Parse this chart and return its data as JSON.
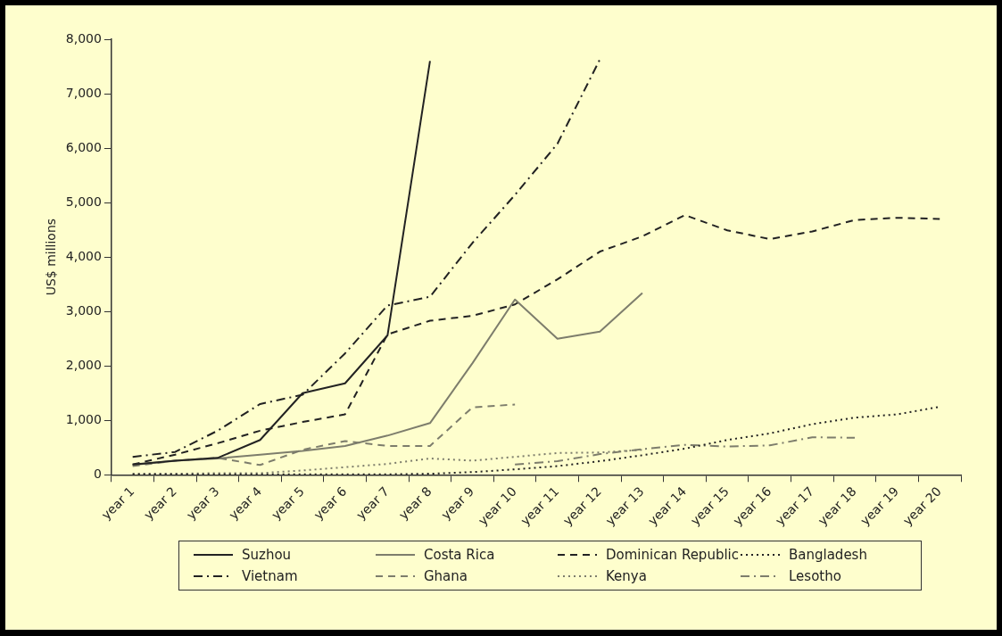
{
  "chart_data": {
    "type": "line",
    "ylabel": "US$ millions",
    "legend": "bottom",
    "grid": false,
    "categories": [
      "year 1",
      "year 2",
      "year 3",
      "year 4",
      "year 5",
      "year 6",
      "year 7",
      "year 8",
      "year 9",
      "year 10",
      "year 11",
      "year 12",
      "year 13",
      "year 14",
      "year 15",
      "year 16",
      "year 17",
      "year 18",
      "year 19",
      "year 20"
    ],
    "ylim": [
      0,
      8000
    ],
    "yticks": [
      0,
      {
        "value": 1000,
        "label": "1,000"
      },
      {
        "value": 2000,
        "label": "2,000"
      },
      {
        "value": 3000,
        "label": "3,000"
      },
      {
        "value": 4000,
        "label": "4,000"
      },
      {
        "value": 5000,
        "label": "5,000"
      },
      {
        "value": 6000,
        "label": "6,000"
      },
      {
        "value": 7000,
        "label": "7,000"
      },
      {
        "value": 8000,
        "label": "8,000"
      }
    ],
    "series": [
      {
        "name": "Suzhou",
        "color": "#222222",
        "line_style": "solid",
        "values": [
          190,
          260,
          310,
          640,
          1500,
          1680,
          2560,
          7600,
          null,
          null,
          null,
          null,
          null,
          null,
          null,
          null,
          null,
          null,
          null,
          null
        ]
      },
      {
        "name": "Costa Rica",
        "color": "#7d7d6c",
        "line_style": "solid",
        "values": [
          180,
          260,
          300,
          370,
          440,
          530,
          720,
          950,
          2050,
          3220,
          2500,
          2630,
          3340,
          null,
          null,
          null,
          null,
          null,
          null,
          null
        ]
      },
      {
        "name": "Dominican Republic",
        "color": "#222222",
        "line_style": "dashed",
        "values": [
          190,
          370,
          580,
          810,
          970,
          1110,
          2580,
          2830,
          2920,
          3130,
          3590,
          4100,
          4380,
          4770,
          4490,
          4330,
          4470,
          4680,
          4720,
          4700
        ]
      },
      {
        "name": "Bangladesh",
        "color": "#222222",
        "line_style": "dotted",
        "values": [
          10,
          10,
          10,
          10,
          10,
          10,
          10,
          20,
          50,
          100,
          160,
          250,
          360,
          480,
          640,
          760,
          930,
          1050,
          1110,
          1250
        ]
      },
      {
        "name": "Vietnam",
        "color": "#222222",
        "line_style": "dashdot",
        "values": [
          330,
          420,
          810,
          1300,
          1470,
          2230,
          3110,
          3270,
          4260,
          5140,
          6080,
          7630,
          null,
          null,
          null,
          null,
          null,
          null,
          null,
          null
        ]
      },
      {
        "name": "Ghana",
        "color": "#7d7d6c",
        "line_style": "dashed",
        "values": [
          160,
          260,
          310,
          180,
          460,
          620,
          530,
          530,
          1240,
          1290,
          null,
          null,
          null,
          null,
          null,
          null,
          null,
          null,
          null,
          null
        ]
      },
      {
        "name": "Kenya",
        "color": "#7d7d6c",
        "line_style": "dotted",
        "values": [
          20,
          20,
          30,
          30,
          80,
          140,
          200,
          300,
          260,
          330,
          400,
          410,
          460,
          null,
          null,
          null,
          null,
          null,
          null,
          null
        ]
      },
      {
        "name": "Lesotho",
        "color": "#7d7d6c",
        "line_style": "dashdot",
        "values": [
          null,
          null,
          null,
          null,
          null,
          null,
          null,
          null,
          null,
          190,
          250,
          380,
          470,
          550,
          520,
          540,
          690,
          680,
          null,
          null
        ]
      }
    ]
  }
}
